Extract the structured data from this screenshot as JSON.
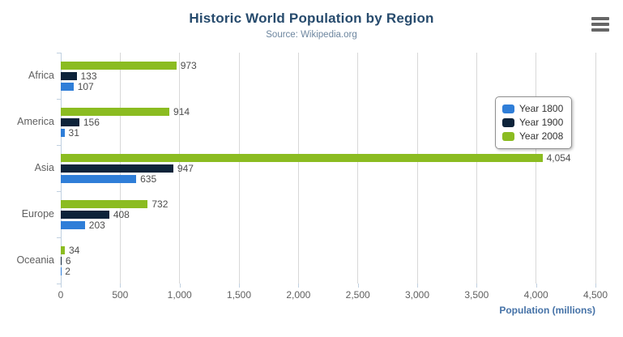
{
  "header": {
    "title": "Historic World Population by Region",
    "subtitle": "Source: Wikipedia.org"
  },
  "chart_data": {
    "type": "bar",
    "orientation": "horizontal",
    "title": "Historic World Population by Region",
    "subtitle": "Source: Wikipedia.org",
    "categories": [
      "Africa",
      "America",
      "Asia",
      "Europe",
      "Oceania"
    ],
    "series": [
      {
        "name": "Year 1800",
        "color": "#2f7ed8",
        "values": [
          107,
          31,
          635,
          203,
          2
        ]
      },
      {
        "name": "Year 1900",
        "color": "#0d233a",
        "values": [
          133,
          156,
          947,
          408,
          6
        ]
      },
      {
        "name": "Year 2008",
        "color": "#8bbc21",
        "values": [
          973,
          914,
          4054,
          732,
          34
        ]
      }
    ],
    "bar_display_order_top_to_bottom": [
      "Year 2008",
      "Year 1900",
      "Year 1800"
    ],
    "data_labels": true,
    "xlabel": "Population (millions)",
    "x_ticks": [
      "0",
      "500",
      "1,000",
      "1,500",
      "2,000",
      "2,500",
      "3,000",
      "3,500",
      "4,000",
      "4,500"
    ],
    "xlim": [
      0,
      4500
    ],
    "grid": true,
    "legend": {
      "position": "right",
      "items": [
        "Year 1800",
        "Year 1900",
        "Year 2008"
      ]
    }
  },
  "icons": {
    "export_menu": "hamburger-menu-icon"
  },
  "colors": {
    "title": "#274b6d",
    "subtitle": "#6d869f",
    "axis_title": "#4572a7",
    "axis_line": "#c0d0e0",
    "gridline": "#d8d8d8",
    "label_text": "#606060",
    "data_label_text": "#4d4d4d",
    "legend_text": "#333333",
    "legend_border": "#909090",
    "menu_icon": "#666666",
    "background": "#ffffff"
  }
}
